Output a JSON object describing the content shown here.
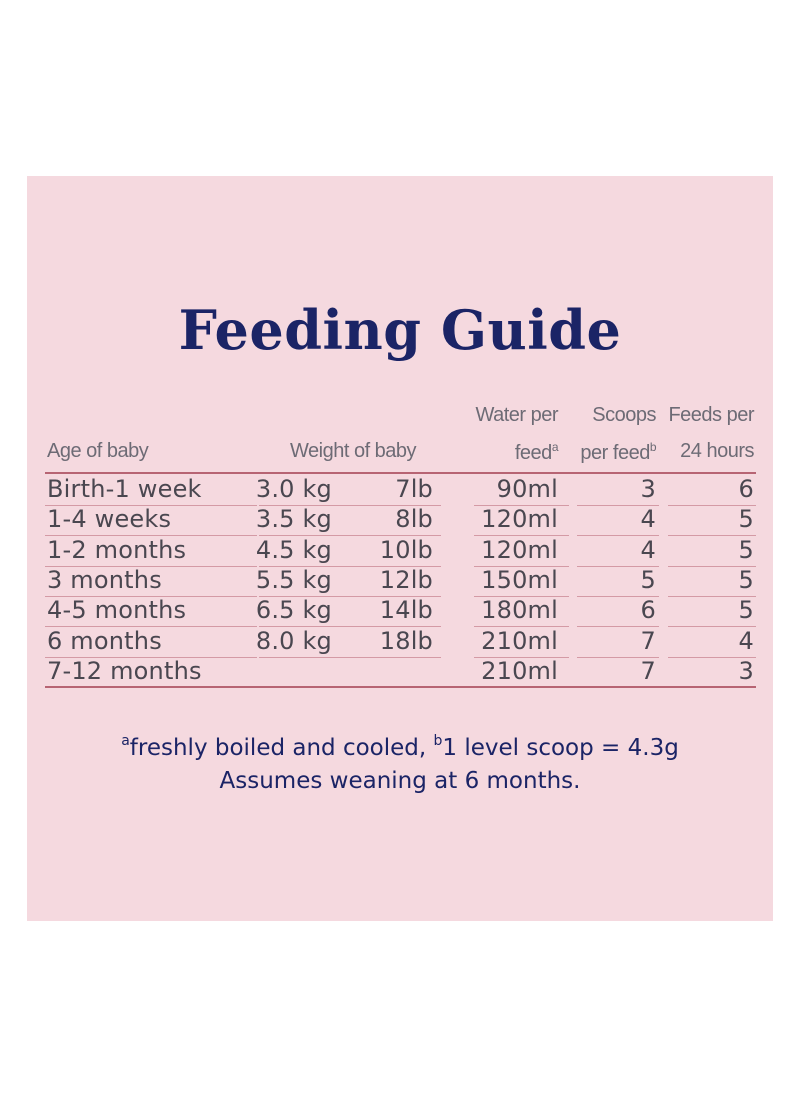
{
  "title": "Feeding Guide",
  "headers": {
    "age": "Age of baby",
    "weight": "Weight of baby",
    "water_line1": "Water per",
    "water_line2": "feed",
    "water_sup": "a",
    "scoops_line1": "Scoops",
    "scoops_line2": "per feed",
    "scoops_sup": "b",
    "feeds_line1": "Feeds per",
    "feeds_line2": "24 hours"
  },
  "rows": [
    {
      "age": "Birth-1 week",
      "kg": "3.0 kg",
      "lb": "7lb",
      "water": "90ml",
      "scoops": "3",
      "feeds": "6"
    },
    {
      "age": "1-4 weeks",
      "kg": "3.5 kg",
      "lb": "8lb",
      "water": "120ml",
      "scoops": "4",
      "feeds": "5"
    },
    {
      "age": "1-2 months",
      "kg": "4.5 kg",
      "lb": "10lb",
      "water": "120ml",
      "scoops": "4",
      "feeds": "5"
    },
    {
      "age": "3 months",
      "kg": "5.5 kg",
      "lb": "12lb",
      "water": "150ml",
      "scoops": "5",
      "feeds": "5"
    },
    {
      "age": "4-5 months",
      "kg": "6.5 kg",
      "lb": "14lb",
      "water": "180ml",
      "scoops": "6",
      "feeds": "5"
    },
    {
      "age": "6 months",
      "kg": "8.0 kg",
      "lb": "18lb",
      "water": "210ml",
      "scoops": "7",
      "feeds": "4"
    },
    {
      "age": "7-12 months",
      "kg": "",
      "lb": "",
      "water": "210ml",
      "scoops": "7",
      "feeds": "3"
    }
  ],
  "notes": {
    "sup_a": "a",
    "text_a": "freshly boiled and cooled, ",
    "sup_b": "b",
    "text_b": "1 level scoop = 4.3g",
    "line2": "Assumes weaning at 6 months."
  },
  "colors": {
    "panel": "#f5d9df",
    "title": "#1b2466",
    "rule": "#b76473",
    "text": "#4a4750"
  }
}
